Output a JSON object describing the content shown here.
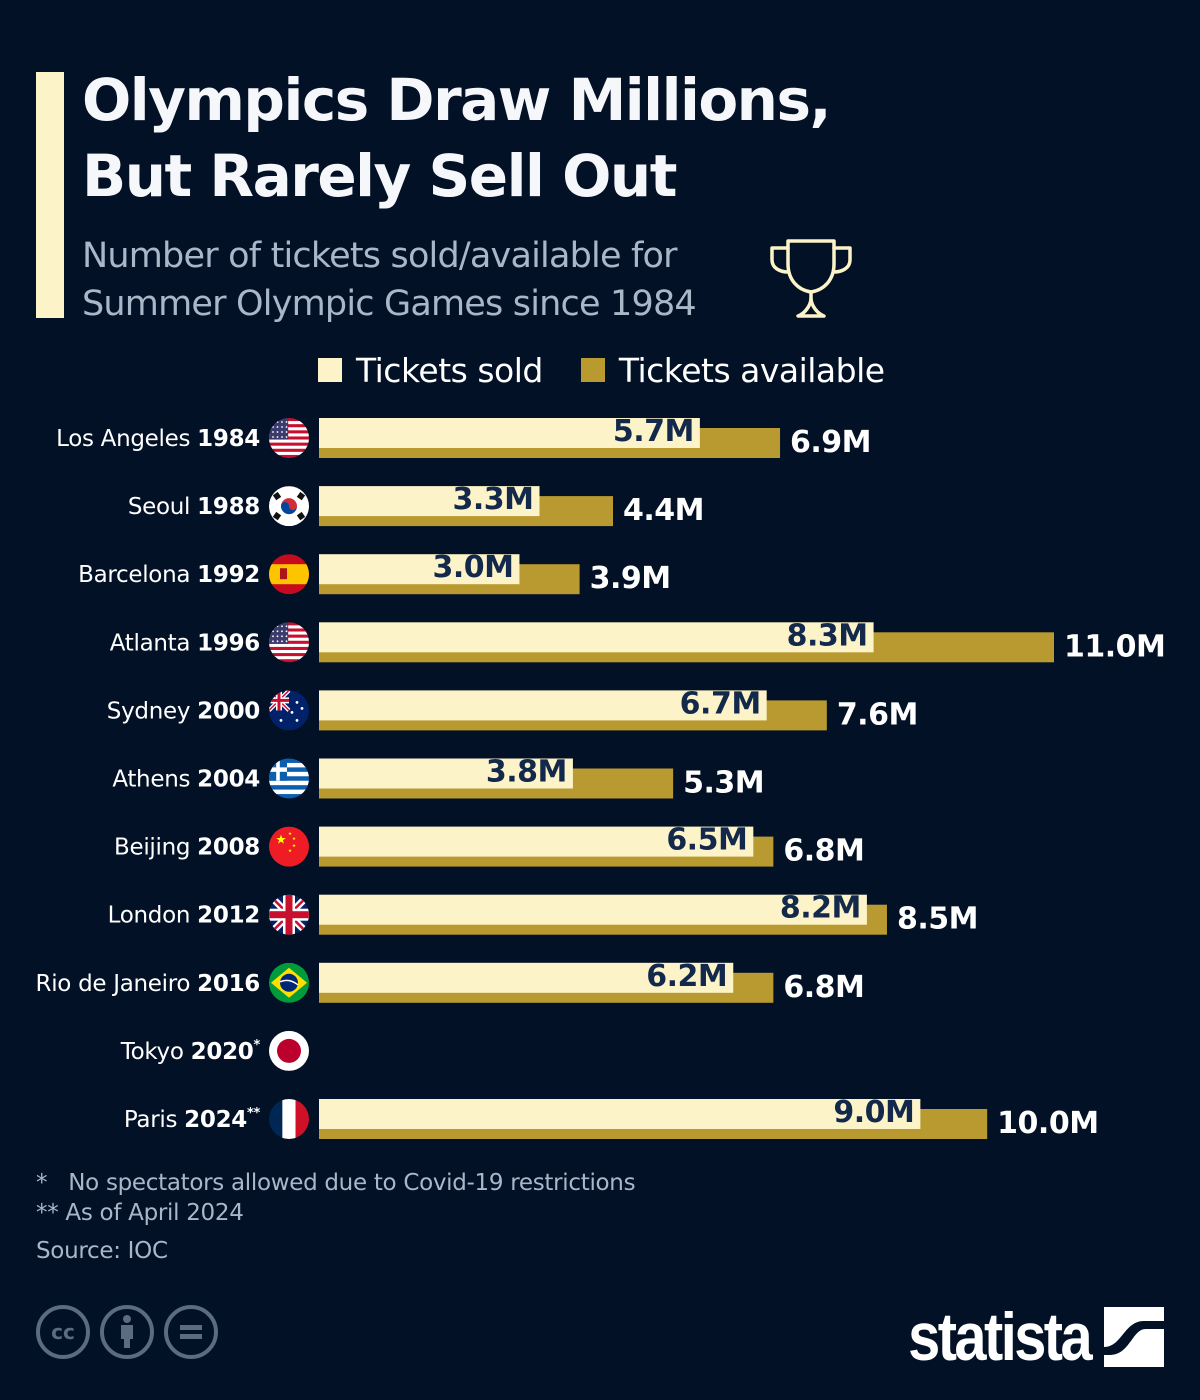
{
  "header": {
    "title_line1": "Olympics Draw Millions,",
    "title_line2": "But Rarely Sell Out",
    "subtitle_line1": "Number of tickets sold/available for",
    "subtitle_line2": "Summer Olympic Games since 1984",
    "icon": "trophy-icon"
  },
  "colors": {
    "background": "#021126",
    "sold": "#fdf3c8",
    "available": "#b89a31",
    "label_dark": "#13294b",
    "label_light": "#ffffff",
    "accent": "#fdf3c8"
  },
  "legend": [
    {
      "label": "Tickets sold",
      "color": "#fdf3c8"
    },
    {
      "label": "Tickets available",
      "color": "#b89a31"
    }
  ],
  "chart_data": {
    "type": "bar",
    "orientation": "horizontal",
    "title": "Olympics Draw Millions, But Rarely Sell Out",
    "subtitle": "Number of tickets sold/available for Summer Olympic Games since 1984",
    "unit": "million tickets",
    "xlim": [
      0,
      11
    ],
    "categories": [
      {
        "city": "Los Angeles",
        "year": "1984",
        "mark": "",
        "flag": "usa-flag-icon"
      },
      {
        "city": "Seoul",
        "year": "1988",
        "mark": "",
        "flag": "south-korea-flag-icon"
      },
      {
        "city": "Barcelona",
        "year": "1992",
        "mark": "",
        "flag": "spain-flag-icon"
      },
      {
        "city": "Atlanta",
        "year": "1996",
        "mark": "",
        "flag": "usa-flag-icon"
      },
      {
        "city": "Sydney",
        "year": "2000",
        "mark": "",
        "flag": "australia-flag-icon"
      },
      {
        "city": "Athens",
        "year": "2004",
        "mark": "",
        "flag": "greece-flag-icon"
      },
      {
        "city": "Beijing",
        "year": "2008",
        "mark": "",
        "flag": "china-flag-icon"
      },
      {
        "city": "London",
        "year": "2012",
        "mark": "",
        "flag": "uk-flag-icon"
      },
      {
        "city": "Rio de Janeiro",
        "year": "2016",
        "mark": "",
        "flag": "brazil-flag-icon"
      },
      {
        "city": "Tokyo",
        "year": "2020",
        "mark": "*",
        "flag": "japan-flag-icon"
      },
      {
        "city": "Paris",
        "year": "2024",
        "mark": "**",
        "flag": "france-flag-icon"
      }
    ],
    "series": [
      {
        "name": "Tickets sold",
        "values": [
          5.7,
          3.3,
          3.0,
          8.3,
          6.7,
          3.8,
          6.5,
          8.2,
          6.2,
          null,
          9.0
        ],
        "labels": [
          "5.7M",
          "3.3M",
          "3.0M",
          "8.3M",
          "6.7M",
          "3.8M",
          "6.5M",
          "8.2M",
          "6.2M",
          "",
          "9.0M"
        ]
      },
      {
        "name": "Tickets available",
        "values": [
          6.9,
          4.4,
          3.9,
          11.0,
          7.6,
          5.3,
          6.8,
          8.5,
          6.8,
          null,
          10.0
        ],
        "labels": [
          "6.9M",
          "4.4M",
          "3.9M",
          "11.0M",
          "7.6M",
          "5.3M",
          "6.8M",
          "8.5M",
          "6.8M",
          "",
          "10.0M"
        ]
      }
    ],
    "grid": false,
    "legend_position": "top"
  },
  "footer": {
    "note1_mark": "*",
    "note1_text": "No spectators allowed due to Covid-19 restrictions",
    "note2_mark": "**",
    "note2_text": "As of April 2024",
    "source": "Source: IOC",
    "license_icons": [
      "cc-icon",
      "attribution-icon",
      "no-derivatives-icon"
    ],
    "brand": "statista"
  }
}
